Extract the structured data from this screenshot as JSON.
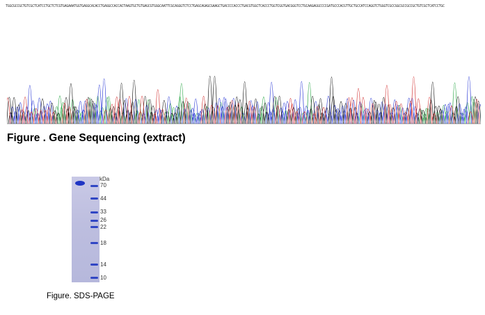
{
  "sequence_strip": {
    "text": "TGGCGCCGCTGTCGCTCATCCTGCTCTCGTGAGAAATGGTGAGGCACACCTGAGGCCACCACTAAGTGCTGTGAGCGTGGGCAATTCGCAGGGTCTCCTGAGCAGAGCGAAGCTGACCCCACCCTGACGTGGCTCACCCTGGTCGGTGACGGGTCCTGCAAGAGGCCCCGATGCCCACGTTGCTGCCATCCAGGTCTGGGTCGCCGGCGCCGCCGCTGTCGCTCATCCTGC",
    "colors": {
      "A": "#2ea84a",
      "C": "#2d3bd6",
      "G": "#1a1a1a",
      "T": "#d23434"
    }
  },
  "sequencing_caption": "Figure . Gene Sequencing (extract)",
  "sds_page": {
    "unit": "kDa",
    "markers": [
      "70",
      "44",
      "33",
      "26",
      "22",
      "18",
      "14",
      "10"
    ],
    "band_color": "#2b3fc0"
  },
  "sds_caption": "Figure. SDS-PAGE"
}
